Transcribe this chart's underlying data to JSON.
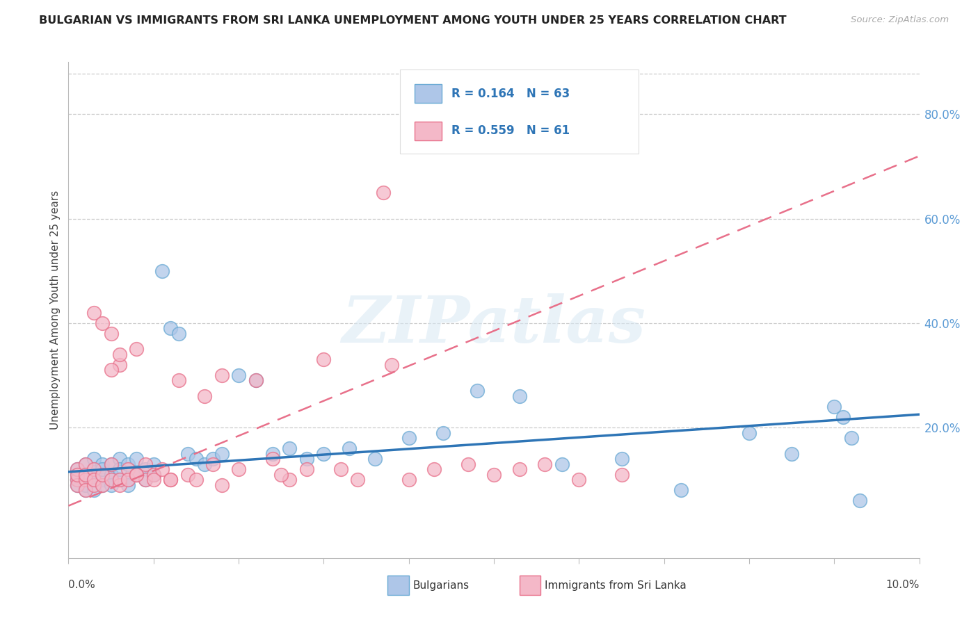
{
  "title": "BULGARIAN VS IMMIGRANTS FROM SRI LANKA UNEMPLOYMENT AMONG YOUTH UNDER 25 YEARS CORRELATION CHART",
  "source": "Source: ZipAtlas.com",
  "ylabel": "Unemployment Among Youth under 25 years",
  "xlim": [
    0.0,
    0.1
  ],
  "ylim": [
    -0.05,
    0.9
  ],
  "right_yticks": [
    0.2,
    0.4,
    0.6,
    0.8
  ],
  "right_yticklabels": [
    "20.0%",
    "40.0%",
    "60.0%",
    "80.0%"
  ],
  "bulgarian_color": "#aec6e8",
  "bulgarian_edge": "#6aaad4",
  "srilanka_color": "#f4b8c8",
  "srilanka_edge": "#e8708a",
  "blue_line_color": "#2e75b6",
  "pink_line_color": "#e8708a",
  "R_bulgarian": 0.164,
  "N_bulgarian": 63,
  "R_srilanka": 0.559,
  "N_srilanka": 61,
  "watermark": "ZIPatlas",
  "bulgarians_x": [
    0.001,
    0.001,
    0.001,
    0.001,
    0.002,
    0.002,
    0.002,
    0.002,
    0.002,
    0.003,
    0.003,
    0.003,
    0.003,
    0.003,
    0.004,
    0.004,
    0.004,
    0.004,
    0.005,
    0.005,
    0.005,
    0.005,
    0.006,
    0.006,
    0.006,
    0.007,
    0.007,
    0.007,
    0.008,
    0.008,
    0.009,
    0.009,
    0.01,
    0.01,
    0.011,
    0.012,
    0.013,
    0.014,
    0.015,
    0.016,
    0.017,
    0.018,
    0.02,
    0.022,
    0.024,
    0.026,
    0.028,
    0.03,
    0.033,
    0.036,
    0.04,
    0.044,
    0.048,
    0.053,
    0.058,
    0.065,
    0.072,
    0.08,
    0.085,
    0.09,
    0.091,
    0.092,
    0.093
  ],
  "bulgarians_y": [
    0.1,
    0.12,
    0.09,
    0.11,
    0.1,
    0.13,
    0.08,
    0.11,
    0.09,
    0.12,
    0.1,
    0.14,
    0.08,
    0.11,
    0.1,
    0.13,
    0.09,
    0.12,
    0.11,
    0.1,
    0.13,
    0.09,
    0.14,
    0.1,
    0.12,
    0.1,
    0.13,
    0.09,
    0.11,
    0.14,
    0.12,
    0.1,
    0.11,
    0.13,
    0.5,
    0.39,
    0.38,
    0.15,
    0.14,
    0.13,
    0.14,
    0.15,
    0.3,
    0.29,
    0.15,
    0.16,
    0.14,
    0.15,
    0.16,
    0.14,
    0.18,
    0.19,
    0.27,
    0.26,
    0.13,
    0.14,
    0.08,
    0.19,
    0.15,
    0.24,
    0.22,
    0.18,
    0.06
  ],
  "srilanka_x": [
    0.001,
    0.001,
    0.001,
    0.001,
    0.002,
    0.002,
    0.002,
    0.002,
    0.003,
    0.003,
    0.003,
    0.003,
    0.004,
    0.004,
    0.004,
    0.005,
    0.005,
    0.005,
    0.006,
    0.006,
    0.006,
    0.007,
    0.007,
    0.008,
    0.008,
    0.009,
    0.009,
    0.01,
    0.01,
    0.011,
    0.012,
    0.013,
    0.014,
    0.015,
    0.016,
    0.017,
    0.018,
    0.02,
    0.022,
    0.024,
    0.026,
    0.028,
    0.03,
    0.032,
    0.034,
    0.037,
    0.04,
    0.043,
    0.047,
    0.05,
    0.053,
    0.056,
    0.06,
    0.065,
    0.038,
    0.025,
    0.018,
    0.012,
    0.008,
    0.006,
    0.005
  ],
  "srilanka_y": [
    0.1,
    0.12,
    0.09,
    0.11,
    0.1,
    0.13,
    0.08,
    0.11,
    0.09,
    0.12,
    0.42,
    0.1,
    0.4,
    0.09,
    0.11,
    0.38,
    0.1,
    0.13,
    0.09,
    0.32,
    0.1,
    0.12,
    0.1,
    0.11,
    0.35,
    0.1,
    0.13,
    0.11,
    0.1,
    0.12,
    0.1,
    0.29,
    0.11,
    0.1,
    0.26,
    0.13,
    0.3,
    0.12,
    0.29,
    0.14,
    0.1,
    0.12,
    0.33,
    0.12,
    0.1,
    0.65,
    0.1,
    0.12,
    0.13,
    0.11,
    0.12,
    0.13,
    0.1,
    0.11,
    0.32,
    0.11,
    0.09,
    0.1,
    0.11,
    0.34,
    0.31
  ],
  "blue_trend_x": [
    0.0,
    0.1
  ],
  "blue_trend_y": [
    0.115,
    0.225
  ],
  "pink_trend_x": [
    0.0,
    0.1
  ],
  "pink_trend_y": [
    0.05,
    0.72
  ]
}
